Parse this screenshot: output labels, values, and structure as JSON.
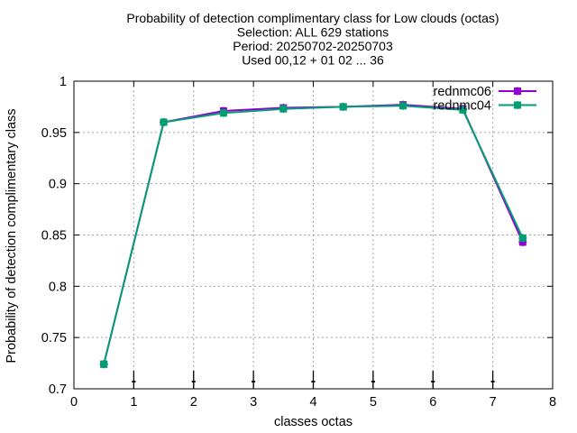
{
  "chart_data": {
    "type": "line",
    "title_lines": [
      "Probability of detection complimentary class  for Low clouds (octas)",
      "Selection: ALL    629 stations",
      "Period: 20250702-20250703",
      "Used 00,12 + 01 02 ... 36"
    ],
    "xlabel": "classes octas",
    "ylabel": "Probability of detection complimentary class",
    "xlim": [
      0,
      8
    ],
    "ylim": [
      0.7,
      1.0
    ],
    "x_ticks": [
      "0",
      "1",
      "2",
      "3",
      "4",
      "5",
      "6",
      "7",
      "8"
    ],
    "y_ticks": [
      "0.7",
      "0.75",
      "0.8",
      "0.85",
      "0.9",
      "0.95",
      "1"
    ],
    "grid": true,
    "legend_position": "top-right",
    "series": [
      {
        "name": "rednmc06",
        "color": "#9400d3",
        "marker": "plus-square",
        "x": [
          0.5,
          1.5,
          2.5,
          3.5,
          4.5,
          5.5,
          6.5,
          7.5
        ],
        "values": [
          0.724,
          0.96,
          0.971,
          0.974,
          0.975,
          0.977,
          0.973,
          0.843
        ]
      },
      {
        "name": "rednmc04",
        "color": "#009e73",
        "marker": "plus-square",
        "x": [
          0.5,
          1.5,
          2.5,
          3.5,
          4.5,
          5.5,
          6.5,
          7.5
        ],
        "values": [
          0.724,
          0.96,
          0.969,
          0.973,
          0.975,
          0.976,
          0.972,
          0.847
        ]
      }
    ],
    "error_bar_x": [
      1,
      2,
      3,
      4,
      5,
      6,
      7
    ]
  }
}
